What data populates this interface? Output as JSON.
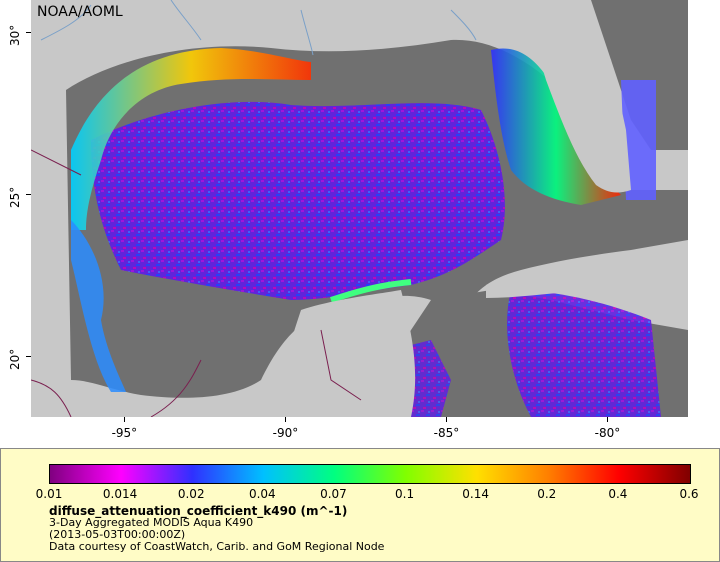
{
  "map": {
    "brand_label": "NOAA/AOML",
    "lat_ticks": [
      {
        "label": "30°",
        "value": 30
      },
      {
        "label": "25°",
        "value": 25
      },
      {
        "label": "20°",
        "value": 20
      }
    ],
    "lon_ticks": [
      {
        "label": "-95°",
        "value": -95
      },
      {
        "label": "-90°",
        "value": -90
      },
      {
        "label": "-85°",
        "value": -85
      },
      {
        "label": "-80°",
        "value": -80
      }
    ],
    "colors": {
      "land": "#c8c8c8",
      "no_data": "#707070",
      "water_lines": "#7aa0c8",
      "borders": "#7a1f4f"
    }
  },
  "legend": {
    "colorbar_labels": [
      "0.01",
      "0.014",
      "0.02",
      "0.04",
      "0.07",
      "0.1",
      "0.14",
      "0.2",
      "0.4",
      "0.6"
    ],
    "colorbar_colors": [
      "#800080",
      "#ff00ff",
      "#3030ff",
      "#00c0ff",
      "#00ff80",
      "#80ff00",
      "#ffe000",
      "#ff8000",
      "#ff0000",
      "#800000"
    ],
    "variable_name": "diffuse_attenuation_coefficient_k490 (m^-1)",
    "product_line": "3-Day Aggregated MODIS Aqua K490",
    "date_line": "(2013-05-03T00:00:00Z)",
    "credit_line": "Data courtesy of CoastWatch, Carib. and GoM Regional Node"
  }
}
